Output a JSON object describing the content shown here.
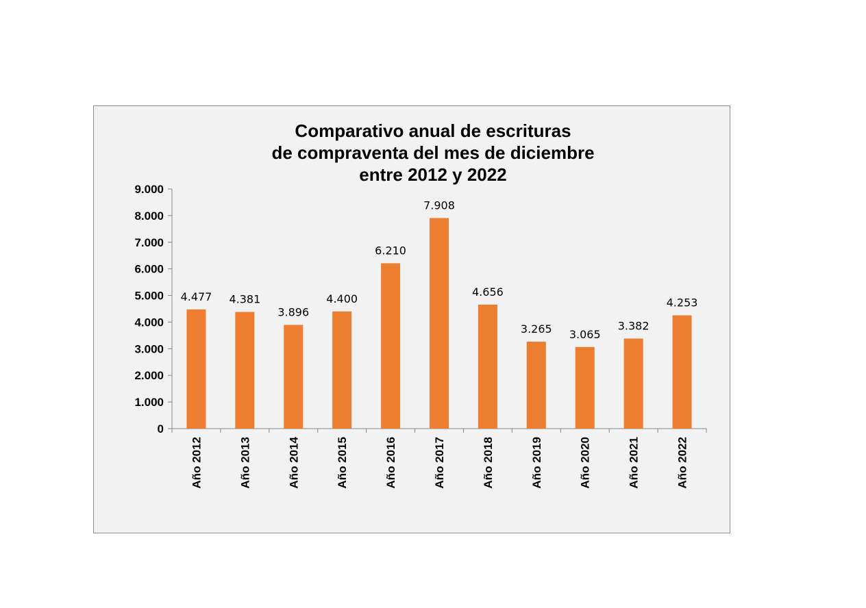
{
  "chart_data": {
    "type": "bar",
    "title_lines": [
      "Comparativo anual de escrituras",
      "de compraventa del mes de diciembre",
      "entre 2012 y 2022"
    ],
    "categories": [
      "Año 2012",
      "Año 2013",
      "Año 2014",
      "Año 2015",
      "Año 2016",
      "Año 2017",
      "Año 2018",
      "Año 2019",
      "Año 2020",
      "Año 2021",
      "Año 2022"
    ],
    "values": [
      4477,
      4381,
      3896,
      4400,
      6210,
      7908,
      4656,
      3265,
      3065,
      3382,
      4253
    ],
    "value_labels": [
      "4.477",
      "4.381",
      "3.896",
      "4.400",
      "6.210",
      "7.908",
      "4.656",
      "3.265",
      "3.065",
      "3.382",
      "4.253"
    ],
    "y_ticks": [
      0,
      1000,
      2000,
      3000,
      4000,
      5000,
      6000,
      7000,
      8000,
      9000
    ],
    "y_tick_labels": [
      "0",
      "1.000",
      "2.000",
      "3.000",
      "4.000",
      "5.000",
      "6.000",
      "7.000",
      "8.000",
      "9.000"
    ],
    "ylim": [
      0,
      9000
    ],
    "grid": false,
    "legend": "none",
    "bar_color": "#ed7d31",
    "background_color": "#f2f2f2"
  }
}
